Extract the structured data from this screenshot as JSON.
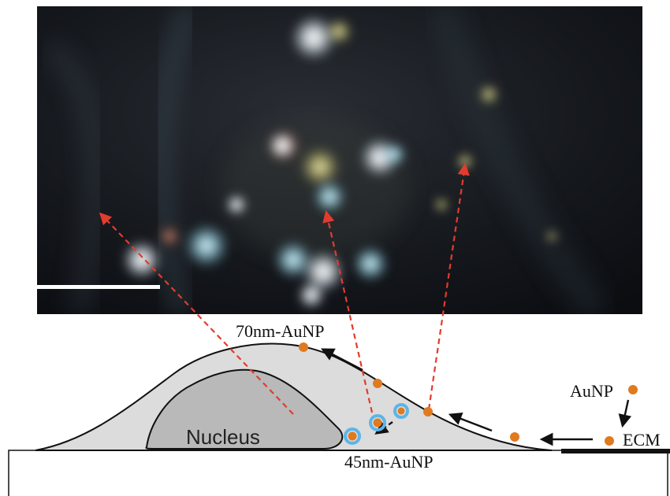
{
  "labels": {
    "top_particle": "70nm-AuNP",
    "bottom_particle": "45nm-AuNP",
    "free_particle": "AuNP",
    "matrix": "ECM",
    "nucleus": "Nucleus"
  },
  "colors": {
    "particle": "#e07a1f",
    "vesicle_ring": "#5bb5e8",
    "cell_fill": "#dcdcdc",
    "nucleus_fill": "#b9b9b9",
    "guide_line": "#e23b2e",
    "arrow": "#111111",
    "scale_bar": "#ffffff"
  }
}
